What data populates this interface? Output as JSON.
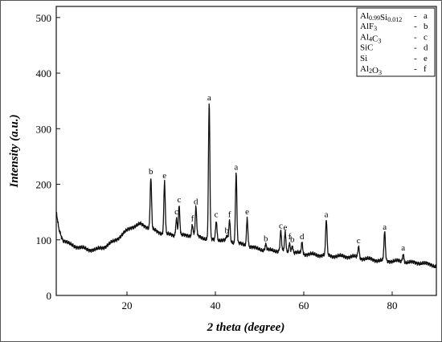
{
  "chart_data": {
    "type": "line",
    "xlabel": "2 theta (degree)",
    "ylabel": "Intensity (a.u.)",
    "xlim": [
      4,
      90
    ],
    "ylim": [
      0,
      520
    ],
    "xticks": [
      20,
      40,
      60,
      80
    ],
    "yticks": [
      0,
      100,
      200,
      300,
      400,
      500
    ],
    "grid": false,
    "legend_placement": "top-right",
    "legend": [
      {
        "base": "Al",
        "sub1": "0.99",
        "mid": "Si",
        "sub2": "0.012",
        "sym": "a"
      },
      {
        "base": "AlF",
        "sub1": "3",
        "mid": "",
        "sub2": "",
        "sym": "b"
      },
      {
        "base": "Al",
        "sub1": "4",
        "mid": "C",
        "sub2": "3",
        "sym": "c"
      },
      {
        "base": "SiC",
        "sub1": "",
        "mid": "",
        "sub2": "",
        "sym": "d"
      },
      {
        "base": "Si",
        "sub1": "",
        "mid": "",
        "sub2": "",
        "sym": "e"
      },
      {
        "base": "Al",
        "sub1": "2",
        "mid": "O",
        "sub2": "3",
        "sym": "f"
      }
    ],
    "baseline": [
      [
        4,
        150
      ],
      [
        4.6,
        120
      ],
      [
        5.5,
        100
      ],
      [
        7,
        92
      ],
      [
        9,
        87
      ],
      [
        11,
        83
      ],
      [
        13,
        82
      ],
      [
        15,
        88
      ],
      [
        17,
        97
      ],
      [
        19,
        110
      ],
      [
        21,
        123
      ],
      [
        23,
        128
      ],
      [
        25,
        122
      ],
      [
        27,
        114
      ],
      [
        29,
        110
      ],
      [
        31,
        108
      ],
      [
        33,
        108
      ],
      [
        35,
        108
      ],
      [
        37,
        104
      ],
      [
        39,
        100
      ],
      [
        41,
        100
      ],
      [
        43,
        98
      ],
      [
        45,
        94
      ],
      [
        47,
        90
      ],
      [
        49,
        85
      ],
      [
        51,
        82
      ],
      [
        53,
        81
      ],
      [
        55,
        80
      ],
      [
        57,
        77
      ],
      [
        59,
        76
      ],
      [
        61,
        74
      ],
      [
        63,
        73
      ],
      [
        65,
        72
      ],
      [
        67,
        71
      ],
      [
        69,
        70
      ],
      [
        71,
        70
      ],
      [
        73,
        67
      ],
      [
        75,
        65
      ],
      [
        77,
        63
      ],
      [
        79,
        62
      ],
      [
        81,
        62
      ],
      [
        83,
        60
      ],
      [
        85,
        59
      ],
      [
        87,
        58
      ],
      [
        89,
        55
      ],
      [
        90,
        52
      ]
    ],
    "peaks": [
      {
        "x": 25.4,
        "y": 212,
        "label": "b"
      },
      {
        "x": 28.5,
        "y": 205,
        "label": "e"
      },
      {
        "x": 31.2,
        "y": 140,
        "label": "c"
      },
      {
        "x": 31.8,
        "y": 162,
        "label": "c"
      },
      {
        "x": 34.8,
        "y": 128,
        "label": "f"
      },
      {
        "x": 35.6,
        "y": 158,
        "label": "d"
      },
      {
        "x": 38.6,
        "y": 345,
        "label": "a"
      },
      {
        "x": 40.2,
        "y": 135,
        "label": "c"
      },
      {
        "x": 42.6,
        "y": 106,
        "label": "b"
      },
      {
        "x": 43.2,
        "y": 135,
        "label": "f"
      },
      {
        "x": 44.7,
        "y": 220,
        "label": "a"
      },
      {
        "x": 47.2,
        "y": 140,
        "label": "e"
      },
      {
        "x": 51.4,
        "y": 92,
        "label": "b"
      },
      {
        "x": 54.8,
        "y": 115,
        "label": "c"
      },
      {
        "x": 55.8,
        "y": 112,
        "label": "e"
      },
      {
        "x": 56.8,
        "y": 95,
        "label": "f"
      },
      {
        "x": 57.4,
        "y": 90,
        "label": "b"
      },
      {
        "x": 59.6,
        "y": 95,
        "label": "d"
      },
      {
        "x": 65.1,
        "y": 135,
        "label": "a"
      },
      {
        "x": 72.4,
        "y": 88,
        "label": "c"
      },
      {
        "x": 78.3,
        "y": 113,
        "label": "a"
      },
      {
        "x": 82.5,
        "y": 75,
        "label": "a"
      }
    ]
  }
}
